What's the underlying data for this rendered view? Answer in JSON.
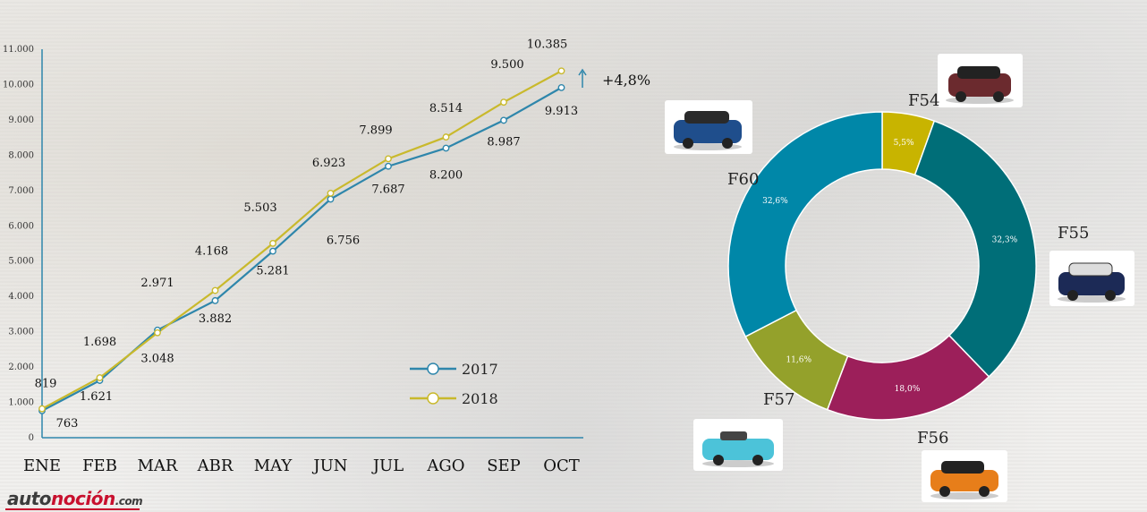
{
  "chart_data": [
    {
      "type": "line",
      "categories": [
        "ENE",
        "FEB",
        "MAR",
        "ABR",
        "MAY",
        "JUN",
        "JUL",
        "AGO",
        "SEP",
        "OCT"
      ],
      "ylim": [
        0,
        11000
      ],
      "yticks": [
        "0",
        "1.000",
        "2.000",
        "3.000",
        "4.000",
        "5.000",
        "6.000",
        "7.000",
        "8.000",
        "9.000",
        "10.000",
        "11.000"
      ],
      "grid": false,
      "legend": "bottom-right",
      "series": [
        {
          "name": "2017",
          "color": "#2e86ab",
          "values": [
            763,
            1621,
            3048,
            3882,
            5281,
            6756,
            7687,
            8200,
            8987,
            9913
          ],
          "labels": [
            "763",
            "1.621",
            "3.048",
            "3.882",
            "5.281",
            "6.756",
            "7.687",
            "8.200",
            "8.987",
            "9.913"
          ]
        },
        {
          "name": "2018",
          "color": "#c9b92c",
          "values": [
            819,
            1698,
            2971,
            4168,
            5503,
            6923,
            7899,
            8514,
            9500,
            10385
          ],
          "labels": [
            "819",
            "1.698",
            "2.971",
            "4.168",
            "5.503",
            "6.923",
            "7.899",
            "8.514",
            "9.500",
            "10.385"
          ]
        }
      ],
      "annotation": "+4,8%"
    },
    {
      "type": "pie",
      "donut": true,
      "slices": [
        {
          "name": "F54",
          "value": 5.5,
          "label": "5,5%",
          "color": "#c8b400"
        },
        {
          "name": "F55",
          "value": 32.3,
          "label": "32,3%",
          "color": "#006e78"
        },
        {
          "name": "F56",
          "value": 18.0,
          "label": "18,0%",
          "color": "#9c1f5a"
        },
        {
          "name": "F57",
          "value": 11.6,
          "label": "11,6%",
          "color": "#94a12b"
        },
        {
          "name": "F60",
          "value": 32.6,
          "label": "32,6%",
          "color": "#0087a8"
        }
      ]
    }
  ],
  "logo": {
    "part1": "auto",
    "part2": "noción",
    "part3": ".com"
  },
  "icons": {
    "car_images": [
      "car-f54-icon",
      "car-f60-icon",
      "car-f55-icon",
      "car-f57-icon",
      "car-f56-icon"
    ]
  }
}
